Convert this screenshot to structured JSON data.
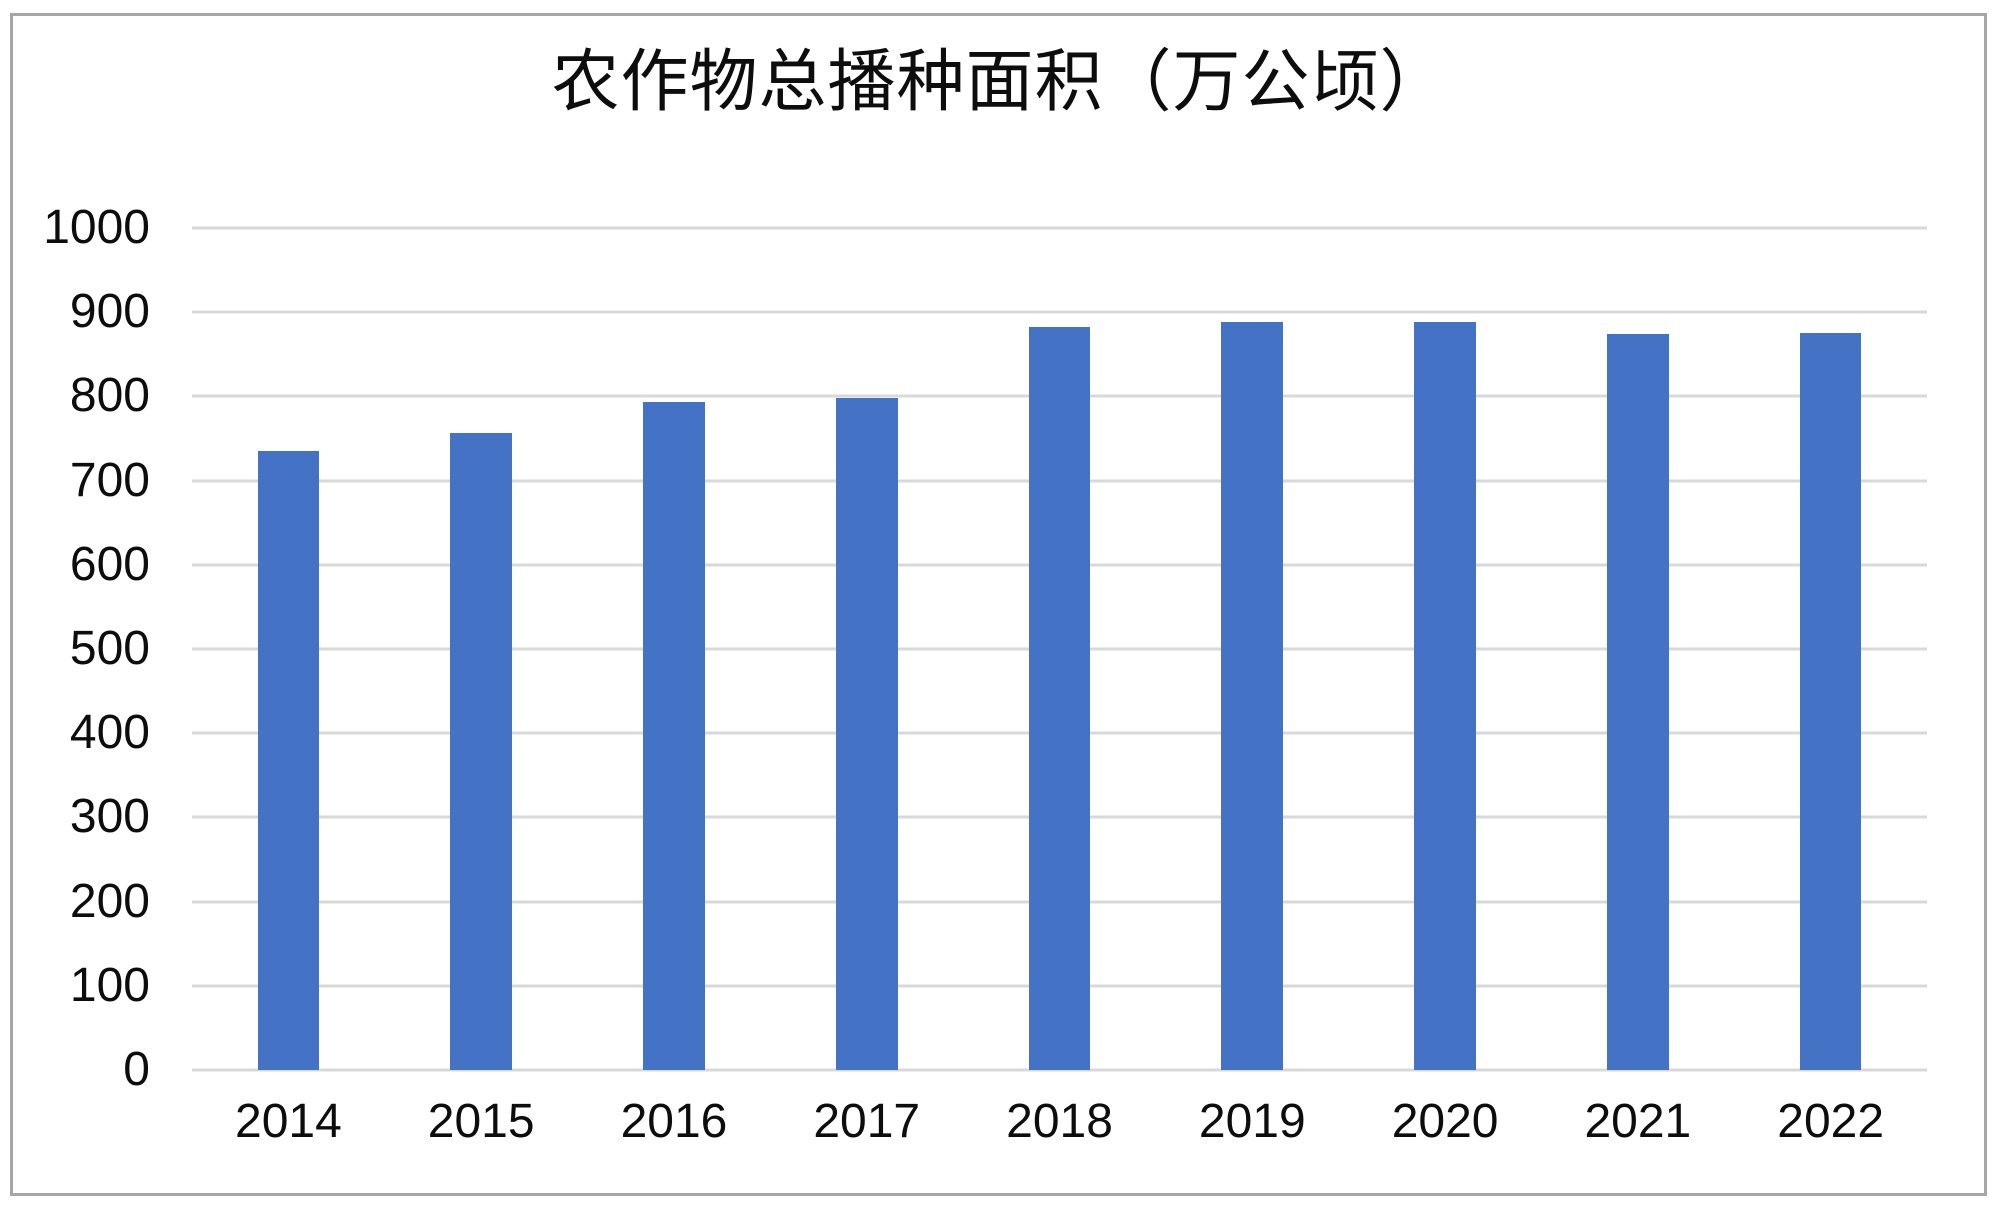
{
  "chart_data": {
    "type": "bar",
    "title": "农作物总播种面积（万公顷）",
    "categories": [
      "2014",
      "2015",
      "2016",
      "2017",
      "2018",
      "2019",
      "2020",
      "2021",
      "2022"
    ],
    "values": [
      735,
      757,
      793,
      798,
      882,
      888,
      888,
      874,
      875
    ],
    "xlabel": "",
    "ylabel": "",
    "ylim": [
      0,
      1000
    ],
    "ytick_interval": 100,
    "ytick_labels": [
      "0",
      "100",
      "200",
      "300",
      "400",
      "500",
      "600",
      "700",
      "800",
      "900",
      "1000"
    ],
    "grid": true,
    "legend": false,
    "bar_color": "#4472c4",
    "gridline_color": "#d9d9d9",
    "frame_border_color": "#a6a6a6",
    "text_color": "#0d0d0d",
    "background_color": "#ffffff"
  }
}
